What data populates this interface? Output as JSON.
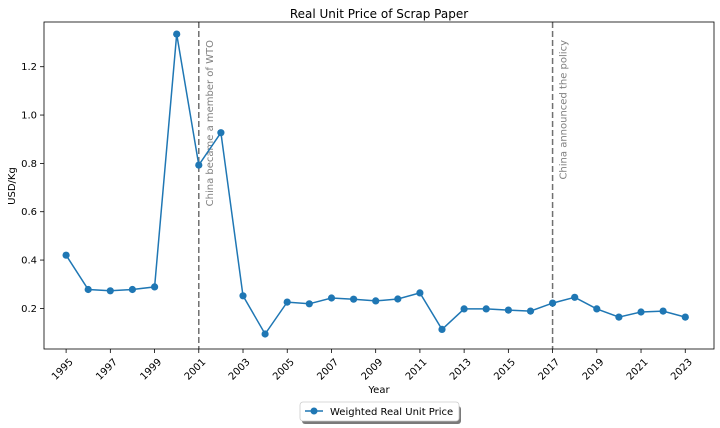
{
  "chart_data": {
    "type": "line",
    "title": "Real Unit Price of Scrap Paper",
    "xlabel": "Year",
    "ylabel": "USD/Kg",
    "xlim": [
      1994,
      2024.3
    ],
    "ylim": [
      0.032,
      1.385
    ],
    "x_ticks": [
      1995,
      1997,
      1999,
      2001,
      2003,
      2005,
      2007,
      2009,
      2011,
      2013,
      2015,
      2017,
      2019,
      2021,
      2023
    ],
    "y_ticks": [
      0.2,
      0.4,
      0.6,
      0.8,
      1.0,
      1.2
    ],
    "y_tick_labels": [
      "0.2",
      "0.4",
      "0.6",
      "0.8",
      "1.0",
      "1.2"
    ],
    "grid": false,
    "legend_position": "bottom-center",
    "series": [
      {
        "name": "Weighted Real Unit Price",
        "color": "#1f77b4",
        "marker": "circle",
        "x": [
          1995,
          1996,
          1997,
          1998,
          1999,
          2000,
          2001,
          2002,
          2003,
          2004,
          2005,
          2006,
          2007,
          2008,
          2009,
          2010,
          2011,
          2012,
          2013,
          2014,
          2015,
          2016,
          2017,
          2018,
          2019,
          2020,
          2021,
          2022,
          2023
        ],
        "y": [
          0.42,
          0.278,
          0.273,
          0.278,
          0.289,
          1.335,
          0.793,
          0.927,
          0.252,
          0.094,
          0.226,
          0.219,
          0.243,
          0.238,
          0.231,
          0.239,
          0.264,
          0.113,
          0.198,
          0.198,
          0.193,
          0.189,
          0.222,
          0.246,
          0.198,
          0.164,
          0.185,
          0.189,
          0.164
        ]
      }
    ],
    "annotations": [
      {
        "x": 2001,
        "text": "China became a member of WTO",
        "line_color": "#707070",
        "text_color": "#808080"
      },
      {
        "x": 2017,
        "text": "China announced the policy",
        "line_color": "#707070",
        "text_color": "#808080"
      }
    ]
  }
}
